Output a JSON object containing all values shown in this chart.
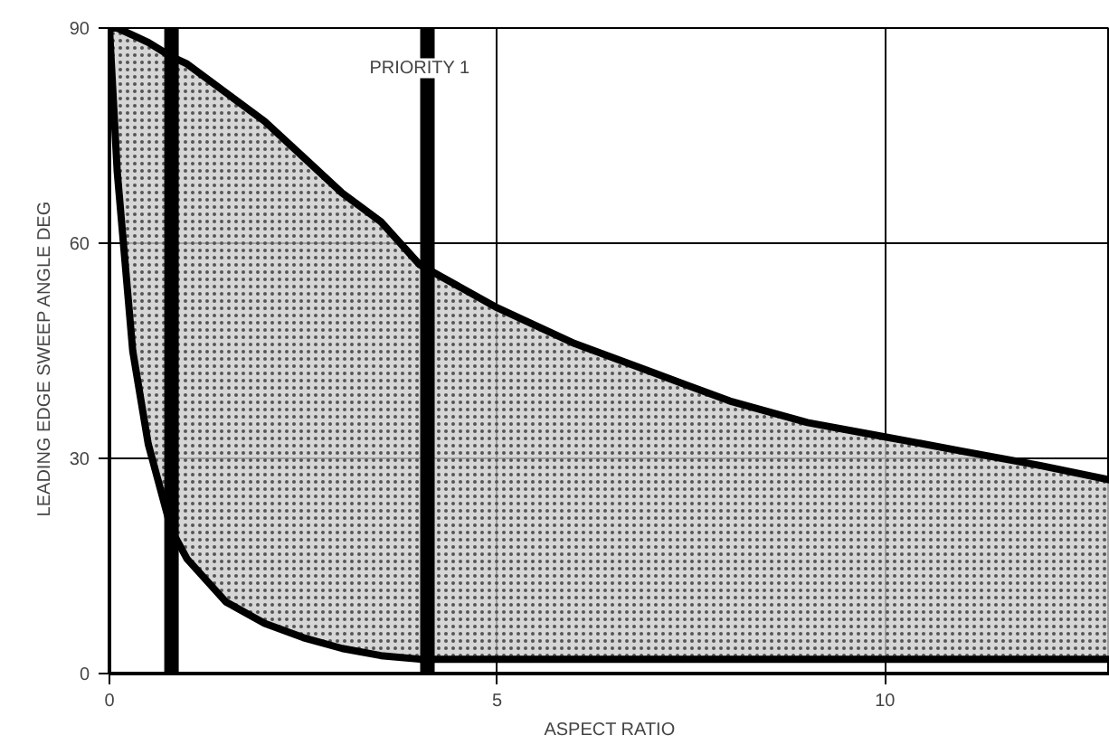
{
  "chart_data": {
    "type": "line",
    "xlabel": "ASPECT RATIO",
    "ylabel": "LEADING EDGE SWEEP ANGLE    DEG",
    "x": [
      0,
      0.1,
      0.3,
      0.5,
      0.8,
      1,
      1.5,
      2,
      2.5,
      3,
      3.5,
      4,
      5,
      6,
      7,
      8,
      9,
      10,
      11,
      12,
      12.9
    ],
    "series": [
      {
        "color": "#000000",
        "values": [
          90,
          90,
          89,
          88,
          86,
          85,
          81,
          77,
          72,
          67,
          63,
          57,
          51,
          46,
          42,
          38,
          35,
          33,
          31,
          29,
          27
        ],
        "lower": [
          90,
          70,
          45,
          32,
          20,
          16,
          10,
          7,
          5,
          3.5,
          2.5,
          2,
          2,
          2,
          2,
          2,
          2,
          2,
          2,
          2,
          2
        ],
        "upper": [
          90,
          90,
          89,
          88,
          86,
          85,
          81,
          77,
          72,
          67,
          63,
          57,
          51,
          46,
          42,
          38,
          35,
          33,
          31,
          29,
          27
        ]
      },
      {
        "color": "#000000",
        "values": [
          90,
          70,
          45,
          32,
          20,
          16,
          10,
          7,
          5,
          3.5,
          2.5,
          2,
          2,
          2,
          2,
          2,
          2,
          2,
          2,
          2,
          2
        ]
      }
    ],
    "ref_lines": [
      {
        "axis": "x",
        "value": 0.8,
        "color": "#000000"
      },
      {
        "axis": "x",
        "value": 4.1,
        "color": "#000000"
      }
    ],
    "annotations": [
      {
        "text": "PRIORITY 1",
        "x": 4.0,
        "y": 83
      }
    ],
    "xlim": [
      0,
      12.9
    ],
    "ylim": [
      0,
      90
    ],
    "xticks": [
      0,
      5,
      10
    ],
    "yticks": [
      0,
      30,
      60,
      90
    ],
    "grid": true,
    "marker": "none",
    "line_style": "solid"
  }
}
